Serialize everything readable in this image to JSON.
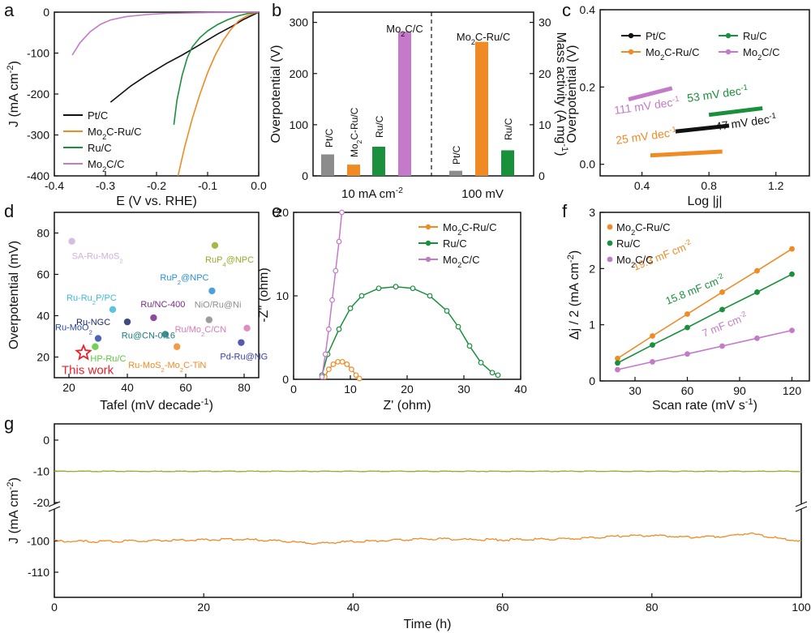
{
  "colors": {
    "black": "#111111",
    "orange": "#f08a24",
    "green": "#1a8f3c",
    "purple": "#c47ac8",
    "gray": "#8c8c8c",
    "olive": "#9aaa2a",
    "red": "#e8212b"
  },
  "chart_data": [
    {
      "panel": "a",
      "type": "line",
      "xlabel": "E (V vs. RHE)",
      "ylabel": "J (mA cm-2)",
      "xlim": [
        -0.4,
        0.0
      ],
      "ylim": [
        -400,
        0
      ],
      "xticks": [
        "-0.4",
        "-0.3",
        "-0.2",
        "-0.1",
        "0.0"
      ],
      "yticks": [
        "-400",
        "-300",
        "-200",
        "-100",
        "0"
      ],
      "legend": "bottom-left",
      "series": [
        {
          "name": "Pt/C",
          "color": "black",
          "x": [
            -0.29,
            -0.25,
            -0.22,
            -0.2,
            -0.18,
            -0.15,
            -0.12,
            -0.1,
            -0.08,
            -0.05,
            -0.03,
            0.0
          ],
          "y": [
            -220,
            -180,
            -155,
            -140,
            -125,
            -105,
            -83,
            -68,
            -53,
            -33,
            -18,
            0
          ]
        },
        {
          "name": "Mo2C-Ru/C",
          "color": "orange",
          "x": [
            -0.158,
            -0.145,
            -0.13,
            -0.115,
            -0.1,
            -0.085,
            -0.07,
            -0.055,
            -0.04,
            -0.025,
            -0.01,
            0.0
          ],
          "y": [
            -400,
            -330,
            -260,
            -200,
            -148,
            -105,
            -70,
            -43,
            -22,
            -10,
            -3,
            0
          ]
        },
        {
          "name": "Ru/C",
          "color": "green",
          "x": [
            -0.166,
            -0.16,
            -0.15,
            -0.14,
            -0.13,
            -0.115,
            -0.1,
            -0.08,
            -0.06,
            -0.04,
            -0.02,
            0.0
          ],
          "y": [
            -275,
            -215,
            -155,
            -112,
            -85,
            -62,
            -46,
            -30,
            -18,
            -9,
            -3,
            0
          ]
        },
        {
          "name": "Mo2C/C",
          "color": "purple",
          "x": [
            -0.365,
            -0.35,
            -0.33,
            -0.31,
            -0.29,
            -0.26,
            -0.22,
            -0.18,
            -0.14,
            -0.1,
            -0.05,
            0.0
          ],
          "y": [
            -105,
            -75,
            -48,
            -30,
            -19,
            -11,
            -6,
            -3,
            -2,
            -1,
            -0.5,
            0
          ]
        }
      ]
    },
    {
      "panel": "b",
      "type": "bar",
      "ylabel": "Overpotential (V)",
      "y2label": "Mass activity (A mg-1)",
      "ylim": [
        0,
        320
      ],
      "y2lim": [
        0,
        32
      ],
      "yticks": [
        "0",
        "100",
        "200",
        "300"
      ],
      "y2ticks": [
        "0",
        "10",
        "20",
        "30"
      ],
      "groups": [
        {
          "label": "10 mA cm-2",
          "categories": [
            "Pt/C",
            "Mo2C-Ru/C",
            "Ru/C",
            "Mo2C/C"
          ],
          "values": [
            42,
            22,
            57,
            282
          ],
          "colors": [
            "gray",
            "orange",
            "green",
            "purple"
          ]
        },
        {
          "label": "100 mV",
          "categories": [
            "Pt/C",
            "Mo2C-Ru/C",
            "Ru/C"
          ],
          "values": [
            1.0,
            26.2,
            5.0
          ],
          "colors": [
            "gray",
            "orange",
            "green"
          ]
        }
      ]
    },
    {
      "panel": "c",
      "type": "line",
      "xlabel": "Log |j|",
      "ylabel": "Overpotential (V)",
      "xlim": [
        0.15,
        1.4
      ],
      "ylim": [
        -0.03,
        0.4
      ],
      "xticks": [
        "0.4",
        "0.8",
        "1.2"
      ],
      "yticks": [
        "0.0",
        "0.2",
        "0.4"
      ],
      "legend": "top",
      "series": [
        {
          "name": "Pt/C",
          "color": "black",
          "x": [
            0.6,
            0.92
          ],
          "y": [
            0.085,
            0.1
          ],
          "label": "47 mV dec-1"
        },
        {
          "name": "Mo2C-Ru/C",
          "color": "orange",
          "x": [
            0.45,
            0.88
          ],
          "y": [
            0.023,
            0.033
          ],
          "label": "25 mV dec-1"
        },
        {
          "name": "Ru/C",
          "color": "green",
          "x": [
            0.8,
            1.12
          ],
          "y": [
            0.128,
            0.145
          ],
          "label": "53 mV dec-1"
        },
        {
          "name": "Mo2C/C",
          "color": "purple",
          "x": [
            0.32,
            0.58
          ],
          "y": [
            0.168,
            0.197
          ],
          "label": "111 mV dec-1"
        }
      ]
    },
    {
      "panel": "d",
      "type": "scatter",
      "xlabel": "Tafel (mV decade-1)",
      "ylabel": "Overpotential (mV)",
      "xlim": [
        15,
        85
      ],
      "ylim": [
        10,
        90
      ],
      "xticks": [
        "20",
        "40",
        "60",
        "80"
      ],
      "yticks": [
        "20",
        "40",
        "60",
        "80"
      ],
      "points": [
        {
          "label": "SA-Ru-MoS2",
          "x": 21,
          "y": 76,
          "color": "#cfb0d8"
        },
        {
          "label": "RuP4@NPC",
          "x": 70,
          "y": 74,
          "color": "#9aaa2a"
        },
        {
          "label": "RuP2@NPC",
          "x": 69,
          "y": 52,
          "color": "#2a8fd8"
        },
        {
          "label": "Ru-Ru2P/PC",
          "x": 35,
          "y": 43,
          "color": "#3cbcd8"
        },
        {
          "label": "Ru/NC-400",
          "x": 49,
          "y": 39,
          "color": "#7a2a8a"
        },
        {
          "label": "NiO/Ru@Ni",
          "x": 68,
          "y": 38,
          "color": "#8c8c8c"
        },
        {
          "label": "Ru-NGC",
          "x": 40,
          "y": 37,
          "color": "#1c2a6a"
        },
        {
          "label": "Ru-MoO2",
          "x": 30,
          "y": 29,
          "color": "#2a4aa8"
        },
        {
          "label": "Ru/Mo2C/CN",
          "x": 81,
          "y": 34,
          "color": "#d87ab8"
        },
        {
          "label": "Ru@CN-0.16",
          "x": 53,
          "y": 31,
          "color": "#1a7a7a"
        },
        {
          "label": "Pd-Ru@NG",
          "x": 79,
          "y": 27,
          "color": "#3a3aa8"
        },
        {
          "label": "HP-Ru/C",
          "x": 29,
          "y": 25,
          "color": "#5ac83a"
        },
        {
          "label": "Ru-MoS2-Mo2C-TiN",
          "x": 57,
          "y": 25,
          "color": "#f08a24"
        },
        {
          "label": "This work",
          "x": 25,
          "y": 22,
          "color": "#e8212b"
        }
      ]
    },
    {
      "panel": "e",
      "type": "scatter",
      "xlabel": "Z' (ohm)",
      "ylabel": "-Z'' (ohm)",
      "xlim": [
        0,
        40
      ],
      "ylim": [
        0,
        20
      ],
      "xticks": [
        "0",
        "10",
        "20",
        "30",
        "40"
      ],
      "yticks": [
        "0",
        "10",
        "20"
      ],
      "legend": "top-right",
      "series": [
        {
          "name": "Mo2C-Ru/C",
          "color": "orange",
          "x": [
            5.5,
            6.2,
            7,
            7.8,
            8.6,
            9.4,
            10.2,
            11,
            11.6
          ],
          "y": [
            0.3,
            1.2,
            1.8,
            2.1,
            2.1,
            1.8,
            1.2,
            0.5,
            0.1
          ]
        },
        {
          "name": "Ru/C",
          "color": "green",
          "x": [
            5,
            6,
            8,
            10,
            12,
            15,
            18,
            21,
            24,
            27,
            29,
            31,
            33,
            35,
            36
          ],
          "y": [
            0.5,
            3,
            6,
            8.5,
            10,
            10.9,
            11.1,
            10.9,
            10,
            8.2,
            6.3,
            4,
            2,
            0.8,
            0.5
          ]
        },
        {
          "name": "Mo2C/C",
          "color": "purple",
          "x": [
            5,
            5.6,
            6.2,
            6.8,
            7.4,
            8,
            8.5
          ],
          "y": [
            0.3,
            3,
            6,
            9.5,
            13,
            16.5,
            20
          ]
        }
      ]
    },
    {
      "panel": "f",
      "type": "line",
      "xlabel": "Scan rate (mV s-1)",
      "ylabel": "Δj / 2 (mA cm-2)",
      "xlim": [
        10,
        130
      ],
      "ylim": [
        0,
        3
      ],
      "xticks": [
        "30",
        "60",
        "90",
        "120"
      ],
      "yticks": [
        "0",
        "1",
        "2",
        "3"
      ],
      "legend": "top-left",
      "series": [
        {
          "name": "Mo2C-Ru/C",
          "color": "orange",
          "x": [
            20,
            40,
            60,
            80,
            100,
            120
          ],
          "y": [
            0.4,
            0.8,
            1.19,
            1.58,
            1.96,
            2.35
          ],
          "label": "19.3 mF cm-2"
        },
        {
          "name": "Ru/C",
          "color": "green",
          "x": [
            20,
            40,
            60,
            80,
            100,
            120
          ],
          "y": [
            0.32,
            0.64,
            0.95,
            1.27,
            1.58,
            1.9
          ],
          "label": "15.8 mF cm-2"
        },
        {
          "name": "Mo2C/C",
          "color": "purple",
          "x": [
            20,
            40,
            60,
            80,
            100,
            120
          ],
          "y": [
            0.2,
            0.34,
            0.48,
            0.62,
            0.76,
            0.9
          ],
          "label": "7 mF cm-2"
        }
      ]
    },
    {
      "panel": "g",
      "type": "line",
      "xlabel": "Time (h)",
      "ylabel": "J (mA cm-2)",
      "xlim": [
        0,
        100
      ],
      "ylim_segments": [
        [
          -110,
          -100
        ],
        [
          -20,
          0
        ]
      ],
      "xticks": [
        "0",
        "20",
        "40",
        "60",
        "80",
        "100"
      ],
      "yticks": [
        "-110",
        "-100",
        "-20",
        "-10",
        "0"
      ],
      "series": [
        {
          "color": "olive",
          "x": [
            0,
            10,
            20,
            30,
            40,
            50,
            60,
            70,
            80,
            90,
            100
          ],
          "y": [
            -10,
            -10,
            -10,
            -10,
            -10,
            -10,
            -10,
            -10,
            -10,
            -10,
            -10
          ]
        },
        {
          "color": "orange",
          "x": [
            0,
            5,
            10,
            15,
            20,
            25,
            30,
            35,
            40,
            45,
            50,
            55,
            60,
            65,
            70,
            75,
            80,
            85,
            90,
            93,
            95,
            100
          ],
          "y": [
            -100,
            -100.2,
            -100,
            -99.8,
            -99.6,
            -99.4,
            -100,
            -100.8,
            -100.2,
            -99.8,
            -99.3,
            -99.5,
            -99.6,
            -99.4,
            -99.2,
            -98.5,
            -98.2,
            -98.8,
            -98.5,
            -97.5,
            -98.5,
            -100
          ]
        }
      ]
    }
  ],
  "panel_letters": [
    "a",
    "b",
    "c",
    "d",
    "e",
    "f",
    "g"
  ],
  "text": {
    "a_legend": [
      "Pt/C",
      "Mo2C-Ru/C",
      "Ru/C",
      "Mo2C/C"
    ],
    "b_xgroups": [
      "10 mA cm-2",
      "100 mV"
    ],
    "b_toplabels": [
      "Mo2C/C",
      "Mo2C-Ru/C"
    ],
    "c_legend": [
      "Pt/C",
      "Ru/C",
      "Mo2C-Ru/C",
      "Mo2C/C"
    ],
    "e_legend": [
      "Mo2C-Ru/C",
      "Ru/C",
      "Mo2C/C"
    ],
    "f_legend": [
      "Mo2C-Ru/C",
      "Ru/C",
      "Mo2C/C"
    ]
  }
}
